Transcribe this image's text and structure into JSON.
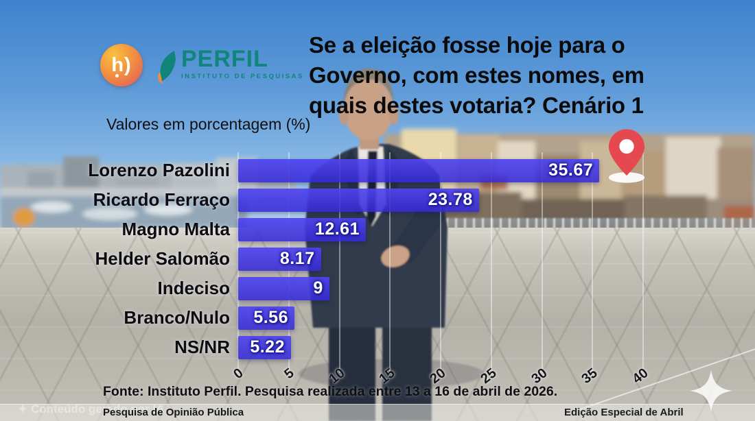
{
  "header": {
    "logo": {
      "mark_text": "h)",
      "brand": "PERFIL",
      "brand_sub": "INSTITUTO DE PESQUISAS"
    },
    "title_lines": [
      "Se a eleição fosse hoje para o",
      "Governo, com estes nomes, em",
      "quais destes votaria? Cenário 1"
    ]
  },
  "chart_data": {
    "type": "bar",
    "orientation": "horizontal",
    "subtitle": "Valores em porcentagem (%)",
    "categories": [
      "Lorenzo Pazolini",
      "Ricardo Ferraço",
      "Magno Malta",
      "Helder Salomão",
      "Indeciso",
      "Branco/Nulo",
      "NS/NR"
    ],
    "values": [
      35.67,
      23.78,
      12.61,
      8.17,
      9,
      5.56,
      5.22
    ],
    "value_labels": [
      "35.67",
      "23.78",
      "12.61",
      "8.17",
      "9",
      "5.56",
      "5.22"
    ],
    "xlim": [
      0,
      40
    ],
    "x_ticks": [
      0,
      5,
      10,
      15,
      20,
      25,
      30,
      35,
      40
    ],
    "grid": true,
    "legend": "none",
    "bar_color": "#3c30dd",
    "value_text_color": "#ffffff"
  },
  "footer": {
    "source": "Fonte: Instituto Perfil. Pesquisa realizada entre 13 a 16 de abril de 2026.",
    "bottom_left": "Pesquisa de Opinião Pública",
    "bottom_right": "Edição Especial de Abril",
    "watermark": "✦ Conteúdo gerado por IA"
  },
  "icons": {
    "location_pin": "red map location pin",
    "sparkle": "white four-point sparkle",
    "logo_leaf": "teal-orange leaf flame"
  },
  "colors": {
    "bar_blue": "#3c30dd",
    "logo_teal": "#12857a",
    "logo_orange": "#f08a42",
    "pin_red": "#e5494f",
    "sky_blue": "#4a8ed3"
  }
}
